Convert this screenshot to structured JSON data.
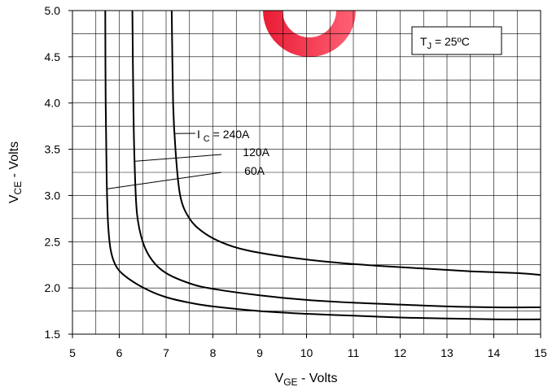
{
  "chart_data": {
    "type": "line",
    "xlabel": "VGE - Volts",
    "ylabel": "VCE - Volts",
    "x_axis": {
      "main": "V",
      "sub": "GE",
      "rest": " - Volts"
    },
    "y_axis": {
      "main": "V",
      "sub": "CE",
      "rest": " - Volts"
    },
    "xlim": [
      5,
      15
    ],
    "ylim": [
      1.5,
      5.0
    ],
    "x_ticks": [
      5,
      6,
      7,
      8,
      9,
      10,
      11,
      12,
      13,
      14,
      15
    ],
    "y_ticks": [
      "1.5",
      "2.0",
      "2.5",
      "3.0",
      "3.5",
      "4.0",
      "4.5",
      "5.0"
    ],
    "grid": true,
    "condition": {
      "main": "T",
      "sub": "J",
      "rest": " = 25ºC"
    },
    "series_label_prefix": {
      "main": "I",
      "sub": "C",
      "rest": " = "
    },
    "series": [
      {
        "name": "240A",
        "color": "#000000",
        "x": [
          7.12,
          7.15,
          7.2,
          7.3,
          7.5,
          7.8,
          8.2,
          8.7,
          9.5,
          10.5,
          11.5,
          12.5,
          13.5,
          14.5,
          15
        ],
        "y": [
          5.0,
          4.0,
          3.5,
          3.0,
          2.75,
          2.6,
          2.49,
          2.41,
          2.34,
          2.28,
          2.24,
          2.21,
          2.18,
          2.16,
          2.14
        ]
      },
      {
        "name": "120A",
        "color": "#000000",
        "x": [
          6.28,
          6.3,
          6.33,
          6.38,
          6.5,
          6.7,
          7.0,
          7.5,
          8.0,
          9.0,
          10.0,
          11.0,
          12.0,
          13.0,
          14.0,
          15.0
        ],
        "y": [
          5.0,
          4.0,
          3.3,
          2.8,
          2.5,
          2.3,
          2.16,
          2.05,
          1.99,
          1.92,
          1.87,
          1.84,
          1.82,
          1.8,
          1.79,
          1.79
        ]
      },
      {
        "name": "60A",
        "color": "#000000",
        "x": [
          5.7,
          5.71,
          5.73,
          5.76,
          5.82,
          5.95,
          6.2,
          6.6,
          7.0,
          7.5,
          8.0,
          9.0,
          10.0,
          11.0,
          12.0,
          13.0,
          14.0,
          15.0
        ],
        "y": [
          5.0,
          4.0,
          3.2,
          2.7,
          2.4,
          2.22,
          2.1,
          1.98,
          1.9,
          1.84,
          1.8,
          1.75,
          1.72,
          1.7,
          1.68,
          1.67,
          1.66,
          1.66
        ]
      }
    ],
    "callout_points": {
      "240A": [
        7.18,
        3.67
      ],
      "120A": [
        6.32,
        3.37
      ],
      "60A": [
        5.72,
        3.07
      ]
    }
  }
}
